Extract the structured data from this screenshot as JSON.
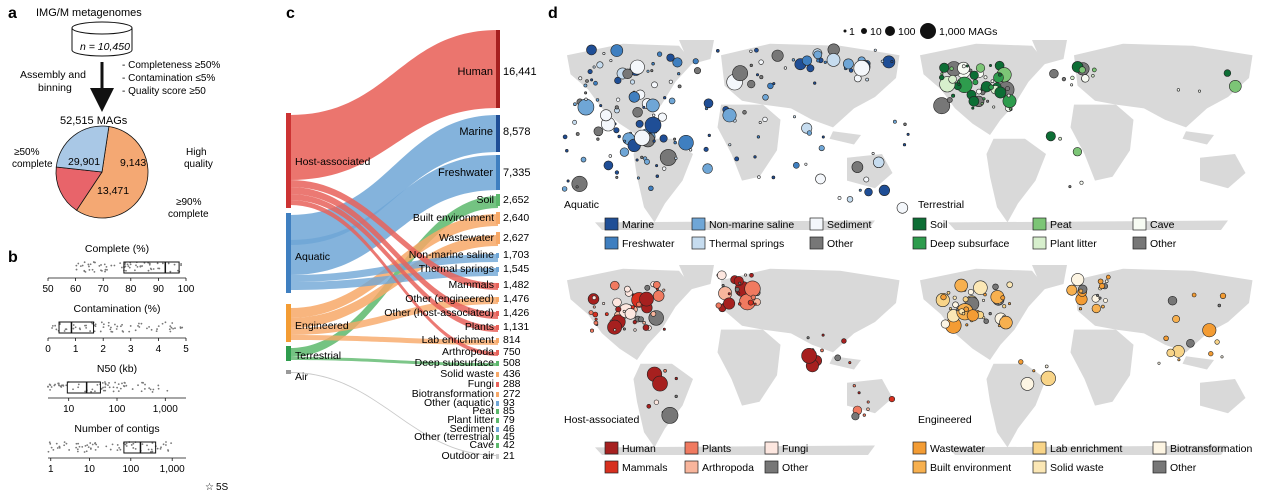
{
  "panels": {
    "a": "a",
    "b": "b",
    "c": "c",
    "d": "d"
  },
  "panel_a": {
    "title": "IMG/M metagenomes",
    "n_label": "n = 10,450",
    "step_label_1": "Assembly and",
    "step_label_2": "binning",
    "criteria": [
      "- Completeness ≥50%",
      "- Contamination ≤5%",
      "- Quality score ≥50"
    ],
    "total_label": "52,515 MAGs",
    "pie": {
      "slices": [
        {
          "label": "29,901",
          "value": 29901,
          "color": "#f4a873"
        },
        {
          "label": "9,143",
          "value": 9143,
          "color": "#e8646a"
        },
        {
          "label": "13,471",
          "value": 13471,
          "color": "#a9c8e6"
        }
      ],
      "left_label_1": "≥50%",
      "left_label_2": "complete",
      "high_label_1": "High",
      "high_label_2": "quality",
      "right_label_1": "≥90%",
      "right_label_2": "complete"
    }
  },
  "panel_b": {
    "plots": [
      {
        "title": "Complete (%)",
        "ticks": [
          "50",
          "60",
          "70",
          "80",
          "90",
          "100"
        ]
      },
      {
        "title": "Contamination (%)",
        "ticks": [
          "0",
          "1",
          "2",
          "3",
          "4",
          "5"
        ]
      },
      {
        "title": "N50 (kb)",
        "ticks": [
          "10",
          "100",
          "1,000"
        ]
      },
      {
        "title": "Number of contigs",
        "ticks": [
          "1",
          "10",
          "100",
          "1,000"
        ]
      }
    ],
    "legend_5s": "5S"
  },
  "panel_c": {
    "sources": [
      {
        "label": "Host-associated",
        "color": "#e8625a"
      },
      {
        "label": "Aquatic",
        "color": "#6fa6d6"
      },
      {
        "label": "Engineered",
        "color": "#f7a867"
      },
      {
        "label": "Terrestrial",
        "color": "#5cb86c"
      },
      {
        "label": "Air",
        "color": "#cccccc"
      }
    ],
    "top_boxes": [
      {
        "label": "Human",
        "value": "16,441",
        "color": "#e8625a"
      },
      {
        "label": "Marine",
        "value": "8,578",
        "color": "#6fa6d6"
      },
      {
        "label": "Freshwater",
        "value": "7,335",
        "color": "#6fa6d6"
      }
    ],
    "targets": [
      {
        "label": "Soil",
        "value": "2,652",
        "color": "#5cb86c"
      },
      {
        "label": "Built environment",
        "value": "2,640",
        "color": "#f7a867"
      },
      {
        "label": "Wastewater",
        "value": "2,627",
        "color": "#f7a867"
      },
      {
        "label": "Non-marine saline",
        "value": "1,703",
        "color": "#6fa6d6"
      },
      {
        "label": "Thermal springs",
        "value": "1,545",
        "color": "#6fa6d6"
      },
      {
        "label": "Mammals",
        "value": "1,482",
        "color": "#e8625a"
      },
      {
        "label": "Other (engineered)",
        "value": "1,476",
        "color": "#f7a867"
      },
      {
        "label": "Other (host-associated)",
        "value": "1,426",
        "color": "#e8625a"
      },
      {
        "label": "Plants",
        "value": "1,131",
        "color": "#e8625a"
      },
      {
        "label": "Lab enrichment",
        "value": "814",
        "color": "#f7a867"
      },
      {
        "label": "Arthropoda",
        "value": "750",
        "color": "#e8625a"
      },
      {
        "label": "Deep subsurface",
        "value": "508",
        "color": "#5cb86c"
      },
      {
        "label": "Solid waste",
        "value": "436",
        "color": "#f7a867"
      },
      {
        "label": "Fungi",
        "value": "288",
        "color": "#e8625a"
      },
      {
        "label": "Biotransformation",
        "value": "272",
        "color": "#f7a867"
      },
      {
        "label": "Other (aquatic)",
        "value": "93",
        "color": "#6fa6d6"
      },
      {
        "label": "Peat",
        "value": "85",
        "color": "#5cb86c"
      },
      {
        "label": "Plant litter",
        "value": "79",
        "color": "#5cb86c"
      },
      {
        "label": "Sediment",
        "value": "46",
        "color": "#6fa6d6"
      },
      {
        "label": "Other (terrestrial)",
        "value": "45",
        "color": "#5cb86c"
      },
      {
        "label": "Cave",
        "value": "42",
        "color": "#5cb86c"
      },
      {
        "label": "Outdoor air",
        "value": "21",
        "color": "#cccccc"
      }
    ]
  },
  "panel_d": {
    "size_legend": [
      "1",
      "10",
      "100",
      "1,000 MAGs"
    ],
    "maps": [
      {
        "title": "Aquatic",
        "legend": [
          {
            "label": "Marine",
            "color": "#1f4e96"
          },
          {
            "label": "Non-marine saline",
            "color": "#6fa6d6"
          },
          {
            "label": "Sediment",
            "color": "#f4f7fb"
          },
          {
            "label": "Freshwater",
            "color": "#3f7fc0"
          },
          {
            "label": "Thermal springs",
            "color": "#c6dcef"
          },
          {
            "label": "Other",
            "color": "#777777"
          }
        ]
      },
      {
        "title": "Terrestrial",
        "legend": [
          {
            "label": "Soil",
            "color": "#0d6e35"
          },
          {
            "label": "Peat",
            "color": "#7cc576"
          },
          {
            "label": "Cave",
            "color": "#f7fbf3"
          },
          {
            "label": "Deep subsurface",
            "color": "#2e9c4d"
          },
          {
            "label": "Plant litter",
            "color": "#d7efcd"
          },
          {
            "label": "Other",
            "color": "#777777"
          }
        ]
      },
      {
        "title": "Host-associated",
        "legend": [
          {
            "label": "Human",
            "color": "#a6201f"
          },
          {
            "label": "Plants",
            "color": "#f07a60"
          },
          {
            "label": "Fungi",
            "color": "#fde7e0"
          },
          {
            "label": "Mammals",
            "color": "#d7301f"
          },
          {
            "label": "Arthropoda",
            "color": "#f8b59c"
          },
          {
            "label": "Other",
            "color": "#777777"
          }
        ]
      },
      {
        "title": "Engineered",
        "legend": [
          {
            "label": "Wastewater",
            "color": "#f39c34"
          },
          {
            "label": "Lab enrichment",
            "color": "#f8d488"
          },
          {
            "label": "Biotransformation",
            "color": "#fdf5e3"
          },
          {
            "label": "Built environment",
            "color": "#f7b04f"
          },
          {
            "label": "Solid waste",
            "color": "#fbe7b5"
          },
          {
            "label": "Other",
            "color": "#777777"
          }
        ]
      }
    ]
  },
  "colors": {
    "map_land": "#d9d9d9",
    "box_fill": "#dddddd",
    "jitter": "#777777"
  }
}
